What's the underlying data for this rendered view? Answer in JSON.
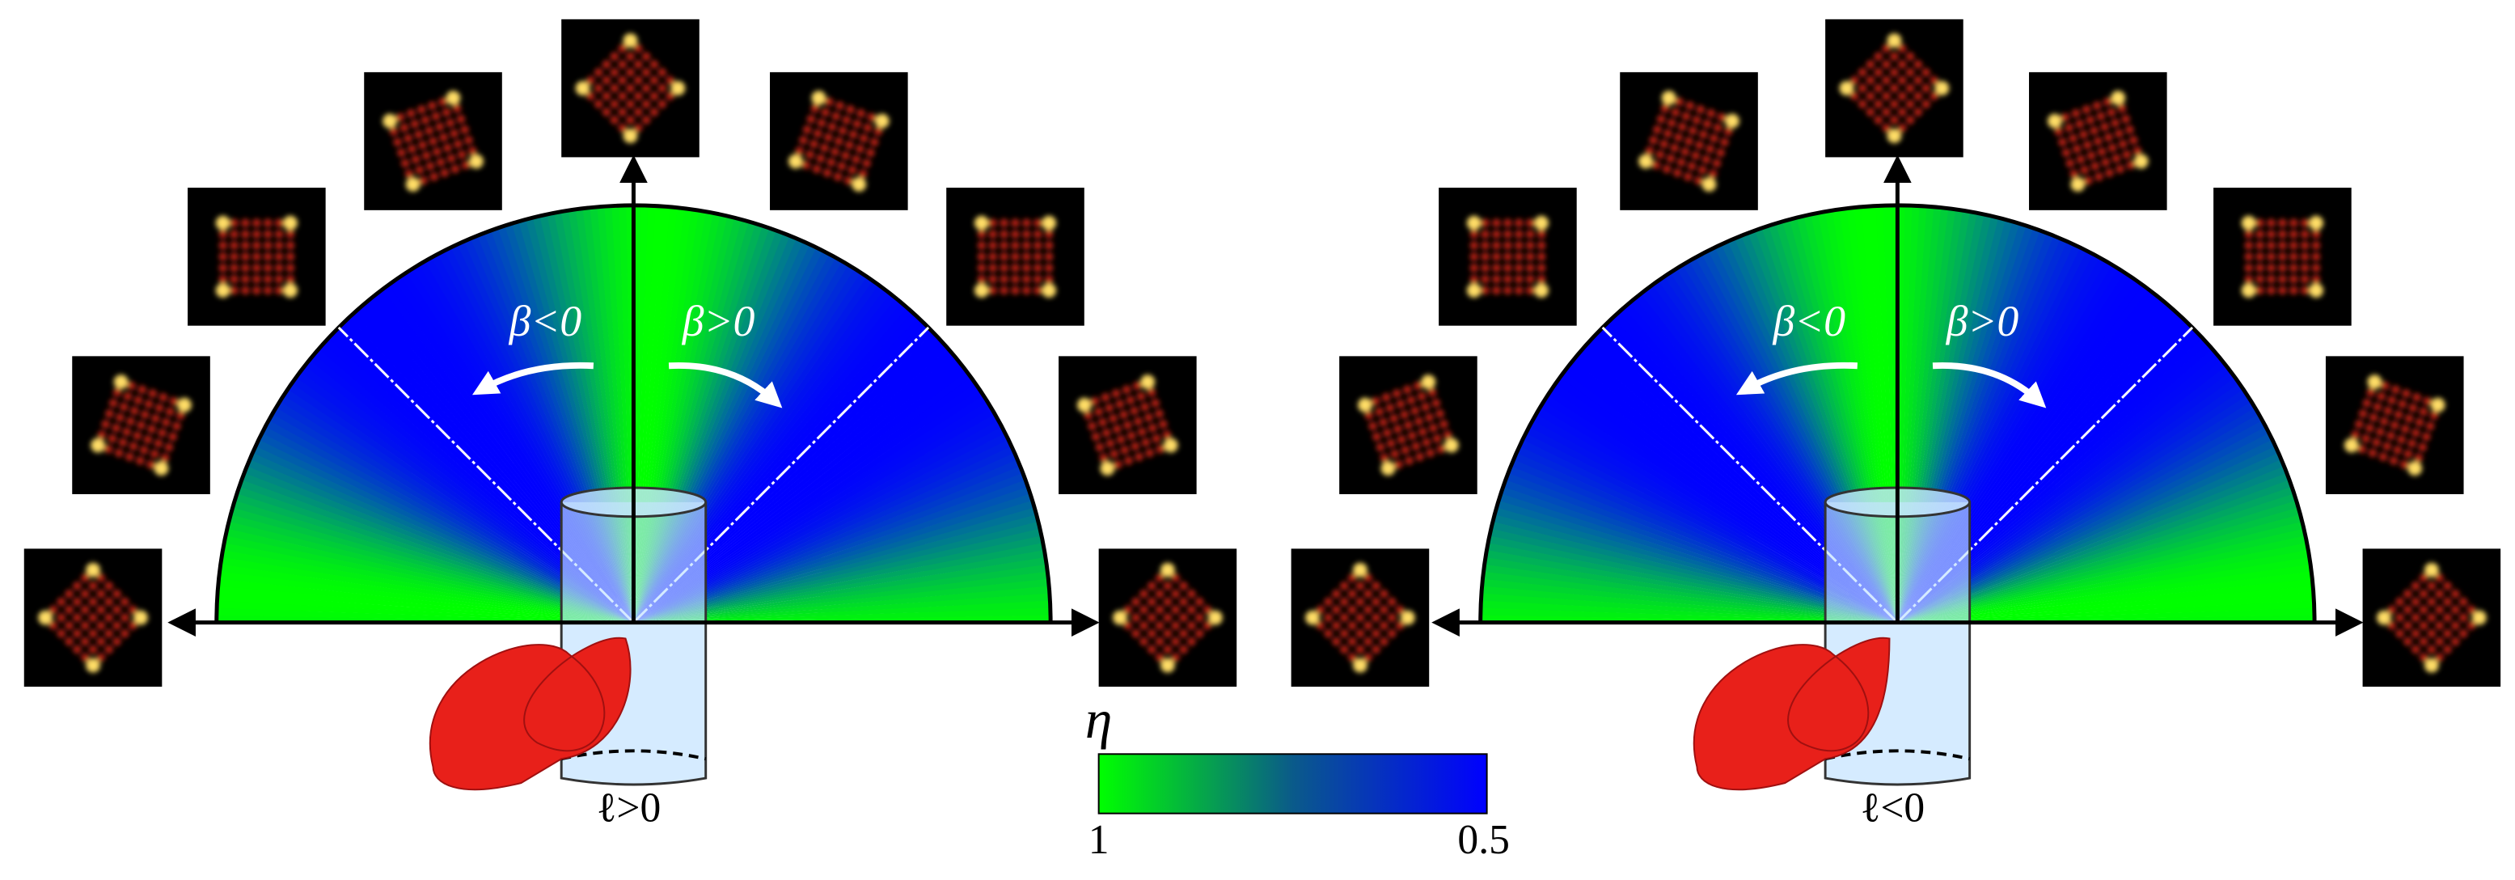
{
  "panels": [
    {
      "beta_negative": "β<0",
      "beta_positive": "β>0",
      "l_label": "ℓ>0"
    },
    {
      "beta_negative": "β<0",
      "beta_positive": "β>0",
      "l_label": "ℓ<0"
    }
  ],
  "colorbar": {
    "label": "η",
    "ticks": [
      1,
      0.5
    ]
  }
}
